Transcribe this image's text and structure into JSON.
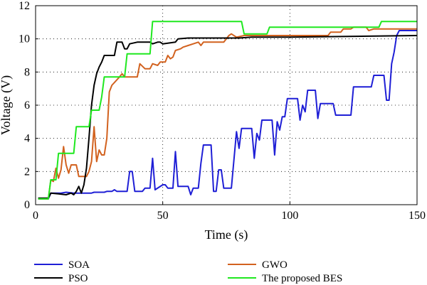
{
  "chart_data": {
    "type": "line",
    "title": "",
    "xlabel": "Time (s)",
    "ylabel": "Voltage (V)",
    "xlim": [
      0,
      150
    ],
    "ylim": [
      0,
      12
    ],
    "xticks": [
      0,
      50,
      100,
      150
    ],
    "yticks": [
      0,
      2,
      4,
      6,
      8,
      10,
      12
    ],
    "grid": true,
    "legend_position": "below",
    "series": [
      {
        "name": "SOA",
        "color": "#1f1fd6",
        "points": [
          [
            1,
            0.35
          ],
          [
            5,
            0.35
          ],
          [
            6,
            0.7
          ],
          [
            10,
            0.7
          ],
          [
            12,
            0.75
          ],
          [
            15,
            0.7
          ],
          [
            18,
            0.7
          ],
          [
            22,
            0.7
          ],
          [
            23,
            0.75
          ],
          [
            27,
            0.75
          ],
          [
            28,
            0.8
          ],
          [
            30,
            0.8
          ],
          [
            31,
            0.9
          ],
          [
            32,
            0.8
          ],
          [
            35,
            0.8
          ],
          [
            36,
            0.8
          ],
          [
            37,
            2.0
          ],
          [
            38,
            2.0
          ],
          [
            39,
            0.8
          ],
          [
            42,
            0.8
          ],
          [
            43,
            1.0
          ],
          [
            45,
            1.0
          ],
          [
            46,
            2.8
          ],
          [
            47,
            0.9
          ],
          [
            50,
            1.2
          ],
          [
            51,
            1.2
          ],
          [
            52,
            1.0
          ],
          [
            54,
            1.0
          ],
          [
            55,
            3.2
          ],
          [
            56,
            1.1
          ],
          [
            60,
            1.1
          ],
          [
            61,
            0.6
          ],
          [
            62,
            1.0
          ],
          [
            64,
            1.0
          ],
          [
            65,
            2.5
          ],
          [
            66,
            3.6
          ],
          [
            69,
            3.6
          ],
          [
            70,
            0.8
          ],
          [
            71,
            0.8
          ],
          [
            72,
            2.1
          ],
          [
            73,
            2.1
          ],
          [
            74,
            1.0
          ],
          [
            77,
            1.0
          ],
          [
            78,
            2.7
          ],
          [
            79,
            4.4
          ],
          [
            80,
            3.4
          ],
          [
            81,
            4.6
          ],
          [
            85,
            4.6
          ],
          [
            86,
            2.8
          ],
          [
            87,
            4.3
          ],
          [
            88,
            3.9
          ],
          [
            89,
            5.1
          ],
          [
            93,
            5.1
          ],
          [
            94,
            3.0
          ],
          [
            95,
            5.0
          ],
          [
            96,
            4.5
          ],
          [
            97,
            5.3
          ],
          [
            98,
            5.3
          ],
          [
            99,
            6.4
          ],
          [
            103,
            6.4
          ],
          [
            104,
            5.1
          ],
          [
            105,
            6.0
          ],
          [
            106,
            5.6
          ],
          [
            107,
            6.9
          ],
          [
            110,
            6.9
          ],
          [
            111,
            5.2
          ],
          [
            112,
            6.1
          ],
          [
            117,
            6.1
          ],
          [
            118,
            5.4
          ],
          [
            124,
            5.4
          ],
          [
            125,
            7.1
          ],
          [
            132,
            7.1
          ],
          [
            133,
            7.8
          ],
          [
            137,
            7.8
          ],
          [
            138,
            6.3
          ],
          [
            139,
            6.3
          ],
          [
            140,
            8.5
          ],
          [
            141,
            9.2
          ],
          [
            142,
            10.2
          ],
          [
            143,
            10.5
          ],
          [
            150,
            10.5
          ]
        ]
      },
      {
        "name": "GWO",
        "color": "#d2621f",
        "points": [
          [
            1,
            0.35
          ],
          [
            5,
            0.35
          ],
          [
            6,
            1.5
          ],
          [
            7,
            1.4
          ],
          [
            8,
            2.2
          ],
          [
            9,
            1.6
          ],
          [
            10,
            2.1
          ],
          [
            11,
            3.5
          ],
          [
            12,
            2.4
          ],
          [
            13,
            1.9
          ],
          [
            14,
            2.4
          ],
          [
            16,
            2.4
          ],
          [
            17,
            1.7
          ],
          [
            20,
            1.7
          ],
          [
            21,
            2.0
          ],
          [
            22,
            2.6
          ],
          [
            23,
            4.7
          ],
          [
            24,
            2.6
          ],
          [
            25,
            3.3
          ],
          [
            26,
            3.0
          ],
          [
            27,
            3.0
          ],
          [
            28,
            4.0
          ],
          [
            29,
            6.8
          ],
          [
            30,
            7.2
          ],
          [
            33,
            7.7
          ],
          [
            34,
            7.9
          ],
          [
            35,
            7.7
          ],
          [
            40,
            7.7
          ],
          [
            41,
            8.5
          ],
          [
            43,
            8.2
          ],
          [
            45,
            8.2
          ],
          [
            46,
            8.5
          ],
          [
            48,
            8.4
          ],
          [
            49,
            8.6
          ],
          [
            51,
            8.6
          ],
          [
            52,
            9.0
          ],
          [
            53,
            8.8
          ],
          [
            54,
            8.9
          ],
          [
            55,
            9.3
          ],
          [
            57,
            9.4
          ],
          [
            58,
            9.5
          ],
          [
            60,
            9.6
          ],
          [
            62,
            9.7
          ],
          [
            64,
            9.8
          ],
          [
            65,
            9.6
          ],
          [
            66,
            9.8
          ],
          [
            74,
            9.8
          ],
          [
            75,
            10.0
          ],
          [
            76,
            10.2
          ],
          [
            77,
            10.3
          ],
          [
            79,
            10.1
          ],
          [
            82,
            10.2
          ],
          [
            95,
            10.2
          ],
          [
            100,
            10.2
          ],
          [
            115,
            10.2
          ],
          [
            116,
            10.4
          ],
          [
            120,
            10.4
          ],
          [
            121,
            10.6
          ],
          [
            124,
            10.6
          ],
          [
            125,
            10.7
          ],
          [
            130,
            10.7
          ],
          [
            131,
            10.5
          ],
          [
            133,
            10.6
          ],
          [
            150,
            10.6
          ]
        ]
      },
      {
        "name": "PSO",
        "color": "#000000",
        "points": [
          [
            1,
            0.4
          ],
          [
            5,
            0.4
          ],
          [
            6,
            0.7
          ],
          [
            9,
            0.65
          ],
          [
            12,
            0.6
          ],
          [
            14,
            0.7
          ],
          [
            15,
            0.6
          ],
          [
            16,
            0.8
          ],
          [
            17,
            1.1
          ],
          [
            18,
            0.7
          ],
          [
            19,
            1.2
          ],
          [
            20,
            2.2
          ],
          [
            21,
            4.0
          ],
          [
            22,
            6.0
          ],
          [
            23,
            7.2
          ],
          [
            24,
            7.9
          ],
          [
            25,
            8.3
          ],
          [
            26,
            8.6
          ],
          [
            27,
            9.0
          ],
          [
            31,
            9.0
          ],
          [
            32,
            9.8
          ],
          [
            34,
            9.8
          ],
          [
            35,
            9.4
          ],
          [
            36,
            9.4
          ],
          [
            37,
            9.7
          ],
          [
            40,
            9.8
          ],
          [
            45,
            9.8
          ],
          [
            46,
            9.7
          ],
          [
            48,
            9.8
          ],
          [
            49,
            9.8
          ],
          [
            50,
            9.7
          ],
          [
            55,
            9.8
          ],
          [
            56,
            10.0
          ],
          [
            60,
            10.05
          ],
          [
            80,
            10.05
          ],
          [
            85,
            10.1
          ],
          [
            100,
            10.1
          ],
          [
            150,
            10.2
          ]
        ]
      },
      {
        "name": "The proposed BES",
        "color": "#1fe81f",
        "points": [
          [
            1,
            0.35
          ],
          [
            5,
            0.35
          ],
          [
            6,
            1.5
          ],
          [
            8,
            1.5
          ],
          [
            9,
            3.1
          ],
          [
            15,
            3.1
          ],
          [
            16,
            4.7
          ],
          [
            21,
            4.7
          ],
          [
            22,
            5.7
          ],
          [
            25,
            5.7
          ],
          [
            26,
            6.5
          ],
          [
            27,
            7.7
          ],
          [
            35,
            7.7
          ],
          [
            36,
            9.1
          ],
          [
            45,
            9.1
          ],
          [
            46,
            11.05
          ],
          [
            81,
            11.05
          ],
          [
            82,
            10.3
          ],
          [
            91,
            10.3
          ],
          [
            92,
            10.7
          ],
          [
            135,
            10.7
          ],
          [
            136,
            11.05
          ],
          [
            150,
            11.05
          ]
        ]
      }
    ]
  }
}
